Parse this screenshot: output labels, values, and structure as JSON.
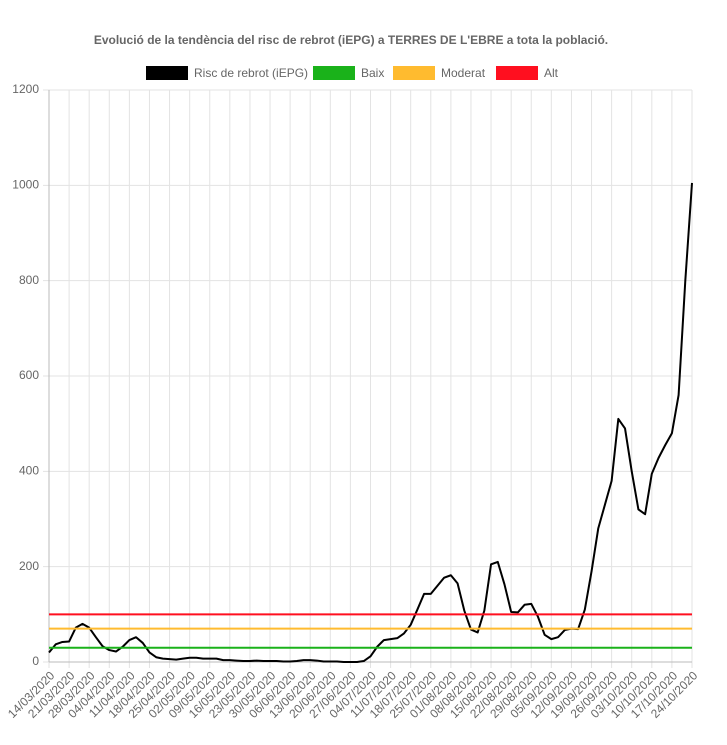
{
  "chart_data": {
    "type": "line",
    "title": "Evolució de la tendència del risc de rebrot (iEPG) a TERRES DE L'EBRE a tota la població.",
    "categories": [
      "14/03/2020",
      null,
      null,
      "21/03/2020",
      null,
      null,
      "28/03/2020",
      null,
      null,
      "04/04/2020",
      null,
      null,
      "11/04/2020",
      null,
      null,
      "18/04/2020",
      null,
      null,
      "25/04/2020",
      null,
      null,
      "02/05/2020",
      null,
      null,
      "09/05/2020",
      null,
      null,
      "16/05/2020",
      null,
      null,
      "23/05/2020",
      null,
      null,
      "30/05/2020",
      null,
      null,
      "06/06/2020",
      null,
      null,
      "13/06/2020",
      null,
      null,
      "20/06/2020",
      null,
      null,
      "27/06/2020",
      null,
      null,
      "04/07/2020",
      null,
      null,
      "11/07/2020",
      null,
      null,
      "18/07/2020",
      null,
      null,
      "25/07/2020",
      null,
      null,
      "01/08/2020",
      null,
      null,
      "08/08/2020",
      null,
      null,
      "15/08/2020",
      null,
      null,
      "22/08/2020",
      null,
      null,
      "29/08/2020",
      null,
      null,
      "05/09/2020",
      null,
      null,
      "12/09/2020",
      null,
      null,
      "19/09/2020",
      null,
      null,
      "26/09/2020",
      null,
      null,
      "03/10/2020",
      null,
      null,
      "10/10/2020",
      null,
      null,
      "17/10/2020",
      null,
      null,
      "24/10/2020"
    ],
    "series": [
      {
        "name": "Risc de rebrot (iEPG)",
        "color": "#000000",
        "values": [
          20,
          37,
          42,
          43,
          72,
          80,
          72,
          52,
          33,
          25,
          22,
          32,
          46,
          52,
          40,
          20,
          10,
          7,
          6,
          5,
          7,
          9,
          9,
          7,
          7,
          7,
          4,
          4,
          3,
          2,
          2,
          3,
          2,
          2,
          2,
          1,
          1,
          2,
          4,
          4,
          3,
          1,
          1,
          1,
          0,
          0,
          0,
          2,
          12,
          32,
          46,
          48,
          50,
          60,
          78,
          110,
          143,
          143,
          160,
          177,
          182,
          165,
          108,
          68,
          62,
          108,
          205,
          210,
          163,
          105,
          104,
          120,
          122,
          95,
          57,
          48,
          52,
          67,
          70,
          69,
          110,
          190,
          280,
          330,
          380,
          510,
          490,
          400,
          320,
          310,
          395,
          428,
          455,
          480,
          560,
          800,
          1005
        ]
      },
      {
        "name": "Baix",
        "color": "#1ab21a",
        "value": 30
      },
      {
        "name": "Moderat",
        "color": "#ffbb2f",
        "value": 70
      },
      {
        "name": "Alt",
        "color": "#ff0f1f",
        "value": 100
      }
    ],
    "ylim": [
      0,
      1200
    ],
    "yticks": [
      0,
      200,
      400,
      600,
      800,
      1000,
      1200
    ],
    "grid": true
  }
}
